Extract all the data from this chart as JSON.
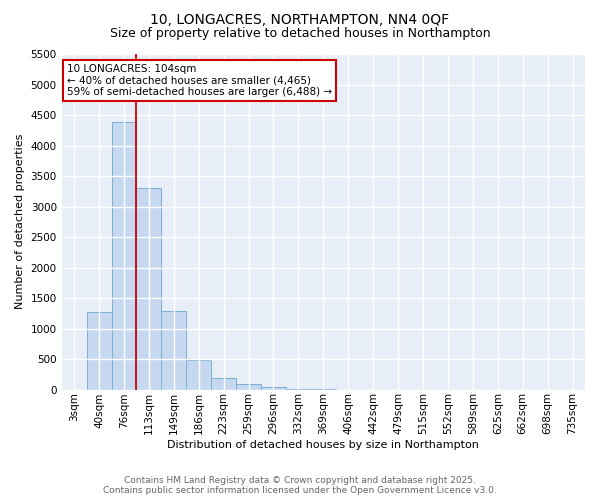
{
  "title": "10, LONGACRES, NORTHAMPTON, NN4 0QF",
  "subtitle": "Size of property relative to detached houses in Northampton",
  "xlabel": "Distribution of detached houses by size in Northampton",
  "ylabel": "Number of detached properties",
  "bar_labels": [
    "3sqm",
    "40sqm",
    "76sqm",
    "113sqm",
    "149sqm",
    "186sqm",
    "223sqm",
    "259sqm",
    "296sqm",
    "332sqm",
    "369sqm",
    "406sqm",
    "442sqm",
    "479sqm",
    "515sqm",
    "552sqm",
    "589sqm",
    "625sqm",
    "662sqm",
    "698sqm",
    "735sqm"
  ],
  "bar_values": [
    0,
    1270,
    4380,
    3300,
    1280,
    490,
    195,
    95,
    45,
    10,
    5,
    0,
    0,
    0,
    0,
    0,
    0,
    0,
    0,
    0,
    0
  ],
  "bar_color": "#c5d8f0",
  "bar_edge_color": "#7aafd4",
  "background_color": "#e8eef8",
  "grid_color": "#ffffff",
  "vline_x": 2.5,
  "vline_color": "#cc0000",
  "ylim": [
    0,
    5500
  ],
  "yticks": [
    0,
    500,
    1000,
    1500,
    2000,
    2500,
    3000,
    3500,
    4000,
    4500,
    5000,
    5500
  ],
  "annotation_title": "10 LONGACRES: 104sqm",
  "annotation_line1": "← 40% of detached houses are smaller (4,465)",
  "annotation_line2": "59% of semi-detached houses are larger (6,488) →",
  "annotation_box_color": "#cc0000",
  "footer_line1": "Contains HM Land Registry data © Crown copyright and database right 2025.",
  "footer_line2": "Contains public sector information licensed under the Open Government Licence v3.0.",
  "title_fontsize": 10,
  "subtitle_fontsize": 9,
  "axis_label_fontsize": 8,
  "tick_fontsize": 7.5,
  "annotation_fontsize": 7.5,
  "footer_fontsize": 6.5
}
